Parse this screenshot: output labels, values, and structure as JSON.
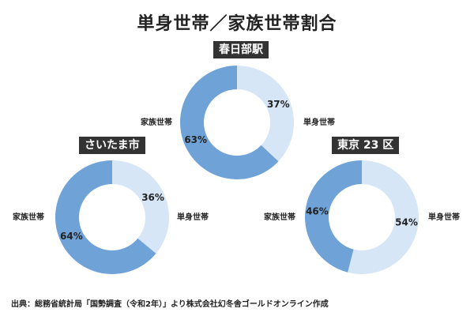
{
  "title": "単身世帯／家族世帯割合",
  "colors": {
    "single": "#d6e6f7",
    "family": "#6fa3d8",
    "label_bg": "#333333"
  },
  "chart_data": [
    {
      "type": "pie",
      "title": "春日部駅",
      "categories": [
        "単身世帯",
        "家族世帯"
      ],
      "values": [
        37,
        63
      ],
      "data_labels": [
        "37%",
        "63%"
      ]
    },
    {
      "type": "pie",
      "title": "さいたま市",
      "categories": [
        "単身世帯",
        "家族世帯"
      ],
      "values": [
        36,
        64
      ],
      "data_labels": [
        "36%",
        "64%"
      ]
    },
    {
      "type": "pie",
      "title": "東京 23 区",
      "categories": [
        "単身世帯",
        "家族世帯"
      ],
      "values": [
        54,
        46
      ],
      "data_labels": [
        "54%",
        "46%"
      ]
    }
  ],
  "source": "出典：総務省統計局「国勢調査（令和2年）」より株式会社幻冬舎ゴールドオンライン作成"
}
